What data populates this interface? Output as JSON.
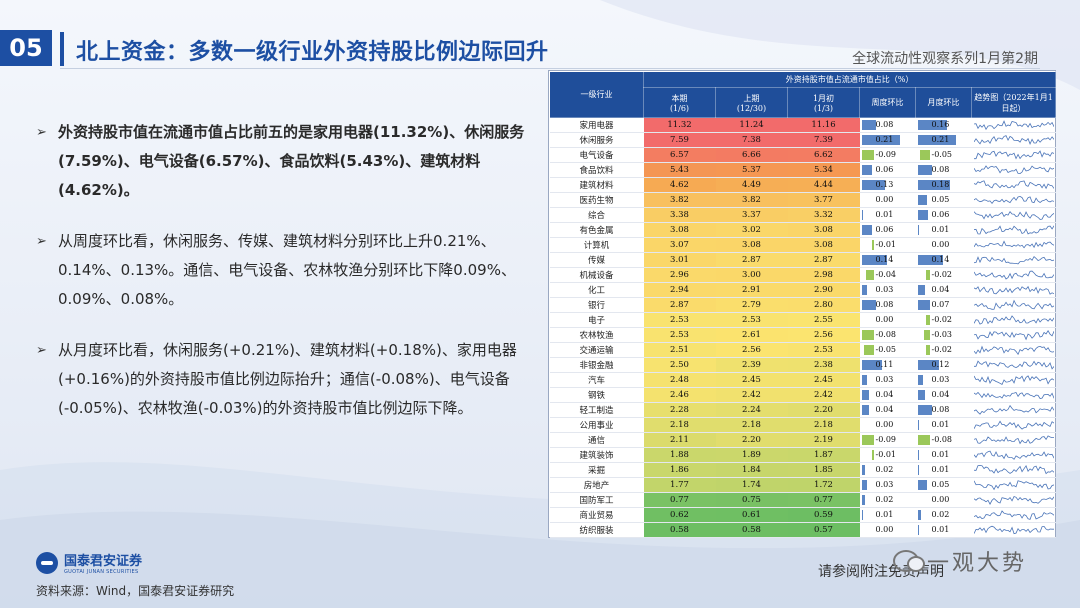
{
  "header": {
    "section_number": "05",
    "title": "北上资金：多数一级行业外资持股比例边际回升",
    "series": "全球流动性观察系列1月第2期"
  },
  "bullets": [
    "外资持股市值在流通市值占比前五的是家用电器(11.32%)、休闲服务(7.59%)、电气设备(6.57%)、食品饮料(5.43%)、建筑材料(4.62%)。",
    "从周度环比看，休闲服务、传媒、建筑材料分别环比上升0.21%、0.14%、0.13%。通信、电气设备、农林牧渔分别环比下降0.09%、0.09%、0.08%。",
    "从月度环比看，休闲服务(+0.21%)、建筑材料(+0.18%)、家用电器(+0.16%)的外资持股市值比例边际抬升；通信(-0.08%)、电气设备(-0.05%)、农林牧渔(-0.03%)的外资持股市值比例边际下降。"
  ],
  "table": {
    "col_industry": "一级行业",
    "group_header": "外资持股市值占流通市值占比（%）",
    "col_current": "本期",
    "col_current_date": "(1/6)",
    "col_prev": "上期",
    "col_prev_date": "(12/30)",
    "col_month": "1月初",
    "col_month_date": "(1/3)",
    "col_week_chg": "周度环比",
    "col_month_chg": "月度环比",
    "col_trend": "趋势图（2022年1月1日起）",
    "colors": {
      "heat_high": "#f26b6b",
      "heat_mid": "#fbe46f",
      "heat_low": "#6cbe63",
      "bar_pos": "#5b86c5",
      "bar_neg": "#9bc85a"
    },
    "rows": [
      {
        "name": "家用电器",
        "cur": "11.32",
        "prev": "11.24",
        "month": "11.16",
        "wk": "0.08",
        "mo": "0.16"
      },
      {
        "name": "休闲服务",
        "cur": "7.59",
        "prev": "7.38",
        "month": "7.39",
        "wk": "0.21",
        "mo": "0.21"
      },
      {
        "name": "电气设备",
        "cur": "6.57",
        "prev": "6.66",
        "month": "6.62",
        "wk": "-0.09",
        "mo": "-0.05"
      },
      {
        "name": "食品饮料",
        "cur": "5.43",
        "prev": "5.37",
        "month": "5.34",
        "wk": "0.06",
        "mo": "0.08"
      },
      {
        "name": "建筑材料",
        "cur": "4.62",
        "prev": "4.49",
        "month": "4.44",
        "wk": "0.13",
        "mo": "0.18"
      },
      {
        "name": "医药生物",
        "cur": "3.82",
        "prev": "3.82",
        "month": "3.77",
        "wk": "0.00",
        "mo": "0.05"
      },
      {
        "name": "综合",
        "cur": "3.38",
        "prev": "3.37",
        "month": "3.32",
        "wk": "0.01",
        "mo": "0.06"
      },
      {
        "name": "有色金属",
        "cur": "3.08",
        "prev": "3.02",
        "month": "3.08",
        "wk": "0.06",
        "mo": "0.01"
      },
      {
        "name": "计算机",
        "cur": "3.07",
        "prev": "3.08",
        "month": "3.08",
        "wk": "-0.01",
        "mo": "0.00"
      },
      {
        "name": "传媒",
        "cur": "3.01",
        "prev": "2.87",
        "month": "2.87",
        "wk": "0.14",
        "mo": "0.14"
      },
      {
        "name": "机械设备",
        "cur": "2.96",
        "prev": "3.00",
        "month": "2.98",
        "wk": "-0.04",
        "mo": "-0.02"
      },
      {
        "name": "化工",
        "cur": "2.94",
        "prev": "2.91",
        "month": "2.90",
        "wk": "0.03",
        "mo": "0.04"
      },
      {
        "name": "银行",
        "cur": "2.87",
        "prev": "2.79",
        "month": "2.80",
        "wk": "0.08",
        "mo": "0.07"
      },
      {
        "name": "电子",
        "cur": "2.53",
        "prev": "2.53",
        "month": "2.55",
        "wk": "0.00",
        "mo": "-0.02"
      },
      {
        "name": "农林牧渔",
        "cur": "2.53",
        "prev": "2.61",
        "month": "2.56",
        "wk": "-0.08",
        "mo": "-0.03"
      },
      {
        "name": "交通运输",
        "cur": "2.51",
        "prev": "2.56",
        "month": "2.53",
        "wk": "-0.05",
        "mo": "-0.02"
      },
      {
        "name": "非银金融",
        "cur": "2.50",
        "prev": "2.39",
        "month": "2.38",
        "wk": "0.11",
        "mo": "0.12"
      },
      {
        "name": "汽车",
        "cur": "2.48",
        "prev": "2.45",
        "month": "2.45",
        "wk": "0.03",
        "mo": "0.03"
      },
      {
        "name": "钢铁",
        "cur": "2.46",
        "prev": "2.42",
        "month": "2.42",
        "wk": "0.04",
        "mo": "0.04"
      },
      {
        "name": "轻工制造",
        "cur": "2.28",
        "prev": "2.24",
        "month": "2.20",
        "wk": "0.04",
        "mo": "0.08"
      },
      {
        "name": "公用事业",
        "cur": "2.18",
        "prev": "2.18",
        "month": "2.18",
        "wk": "0.00",
        "mo": "0.01"
      },
      {
        "name": "通信",
        "cur": "2.11",
        "prev": "2.20",
        "month": "2.19",
        "wk": "-0.09",
        "mo": "-0.08"
      },
      {
        "name": "建筑装饰",
        "cur": "1.88",
        "prev": "1.89",
        "month": "1.87",
        "wk": "-0.01",
        "mo": "0.01"
      },
      {
        "name": "采掘",
        "cur": "1.86",
        "prev": "1.84",
        "month": "1.85",
        "wk": "0.02",
        "mo": "0.01"
      },
      {
        "name": "房地产",
        "cur": "1.77",
        "prev": "1.74",
        "month": "1.72",
        "wk": "0.03",
        "mo": "0.05"
      },
      {
        "name": "国防军工",
        "cur": "0.77",
        "prev": "0.75",
        "month": "0.77",
        "wk": "0.02",
        "mo": "0.00"
      },
      {
        "name": "商业贸易",
        "cur": "0.62",
        "prev": "0.61",
        "month": "0.59",
        "wk": "0.01",
        "mo": "0.02"
      },
      {
        "name": "纺织服装",
        "cur": "0.58",
        "prev": "0.58",
        "month": "0.57",
        "wk": "0.00",
        "mo": "0.01"
      }
    ]
  },
  "footer": {
    "logo_cn": "国泰君安证券",
    "logo_en": "GUOTAI JUNAN SECURITIES",
    "source": "资料来源：Wind，国泰君安证券研究",
    "disclaimer": "请参阅附注免责声明",
    "watermark": "一观大势"
  }
}
